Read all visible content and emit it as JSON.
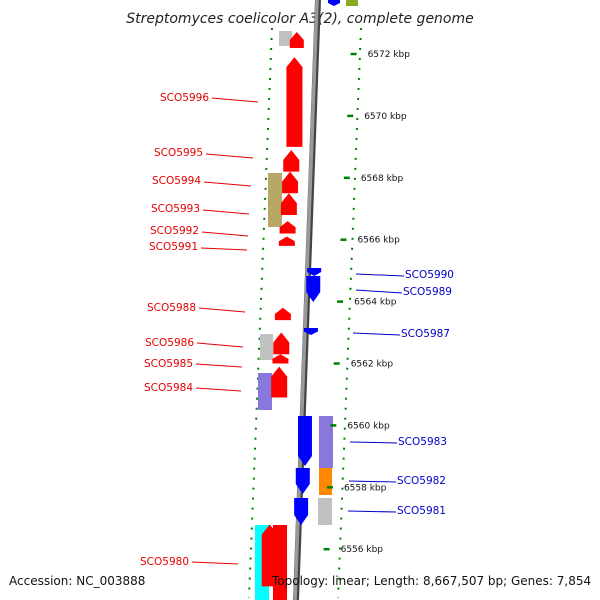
{
  "title": "Streptomyces coelicolor A3(2), complete genome",
  "accession_text": "Accession: NC_003888",
  "topology_text": "Topology: linear; Length: 8,667,507 bp; Genes: 7,854",
  "scale": {
    "unit": "kbp",
    "ticks": [
      {
        "label": "6572 kbp",
        "kbp": 6572
      },
      {
        "label": "6570 kbp",
        "kbp": 6570
      },
      {
        "label": "6568 kbp",
        "kbp": 6568
      },
      {
        "label": "6566 kbp",
        "kbp": 6566
      },
      {
        "label": "6564 kbp",
        "kbp": 6564
      },
      {
        "label": "6562 kbp",
        "kbp": 6562
      },
      {
        "label": "6560 kbp",
        "kbp": 6560
      },
      {
        "label": "6558 kbp",
        "kbp": 6558
      },
      {
        "label": "6556 kbp",
        "kbp": 6556
      }
    ]
  },
  "genes_forward": [
    {
      "label": "SCO5996",
      "start_kbp": 6569.0,
      "end_kbp": 6571.9
    },
    {
      "label": "SCO5995",
      "start_kbp": 6568.2,
      "end_kbp": 6568.9
    },
    {
      "label": "SCO5994",
      "start_kbp": 6567.5,
      "end_kbp": 6568.2
    },
    {
      "label": "SCO5993",
      "start_kbp": 6566.8,
      "end_kbp": 6567.5
    },
    {
      "label": "SCO5992",
      "start_kbp": 6566.2,
      "end_kbp": 6566.6
    },
    {
      "label": "SCO5991",
      "start_kbp": 6565.8,
      "end_kbp": 6566.1
    },
    {
      "label": "SCO5988",
      "start_kbp": 6563.4,
      "end_kbp": 6563.8
    },
    {
      "label": "SCO5986",
      "start_kbp": 6562.3,
      "end_kbp": 6563.0
    },
    {
      "label": "SCO5985",
      "start_kbp": 6562.0,
      "end_kbp": 6562.3
    },
    {
      "label": "SCO5984",
      "start_kbp": 6560.9,
      "end_kbp": 6561.9
    },
    {
      "label": "SCO5980",
      "start_kbp": 6554.8,
      "end_kbp": 6556.8
    }
  ],
  "genes_reverse": [
    {
      "label": "SCO5990",
      "start_kbp": 6564.2,
      "end_kbp": 6565.0
    },
    {
      "label": "SCO5989",
      "start_kbp": 6564.2,
      "end_kbp": 6565.0
    },
    {
      "label": "SCO5987",
      "start_kbp": 6562.7,
      "end_kbp": 6562.9
    },
    {
      "label": "SCO5983",
      "start_kbp": 6558.9,
      "end_kbp": 6560.5
    },
    {
      "label": "SCO5982",
      "start_kbp": 6558.0,
      "end_kbp": 6558.8
    },
    {
      "label": "SCO5981",
      "start_kbp": 6557.1,
      "end_kbp": 6557.9
    }
  ],
  "colors": {
    "forward_gene": "#ff0000",
    "reverse_gene": "#0000ff",
    "backbone": "#9a9a9a",
    "tick": "#008000",
    "forward_label": "#e60000",
    "reverse_label": "#0000c8",
    "cog_khaki": "#b8a866",
    "cog_gray": "#c0c0c0",
    "cog_lavender": "#8877dd",
    "cog_orange": "#ff8800",
    "cog_cyan": "#00ffff",
    "cog_olive": "#88aa22"
  }
}
